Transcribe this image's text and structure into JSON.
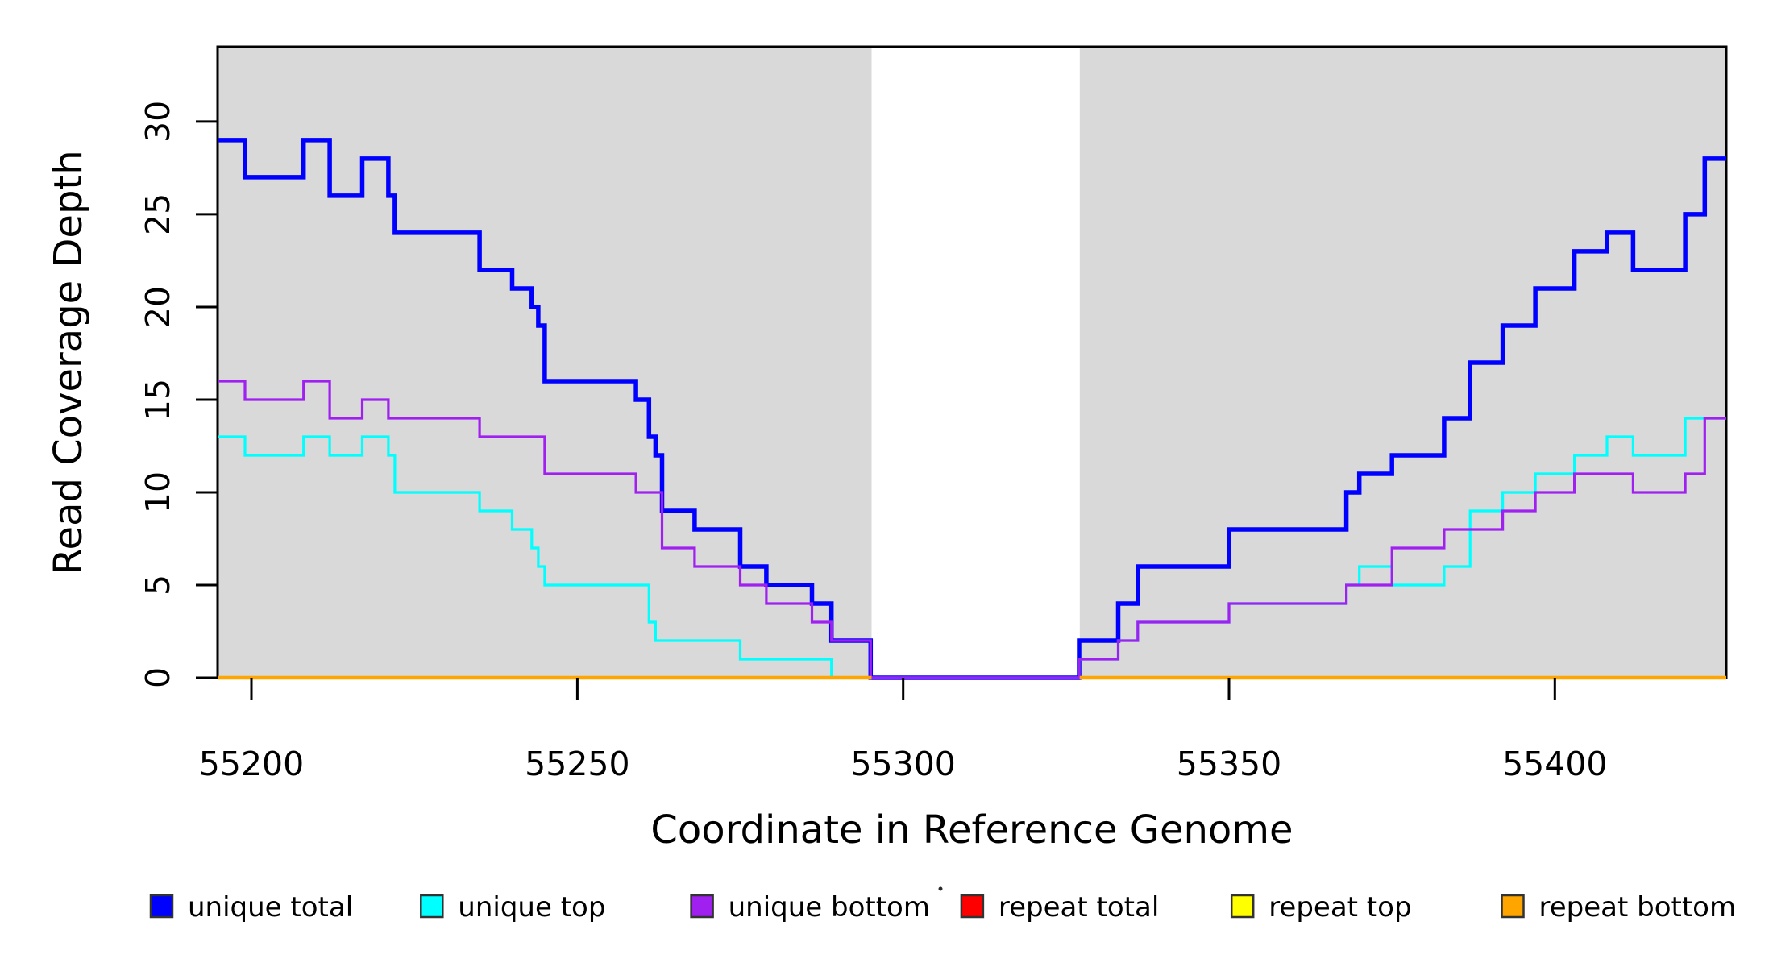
{
  "figure": {
    "background_color": "#ffffff",
    "plot_background_color": "#ffffff",
    "shaded_band_color": "#d9d9d9"
  },
  "axes": {
    "xlabel": "Coordinate in Reference Genome",
    "ylabel": "Read Coverage Depth"
  },
  "chart_data": {
    "type": "line",
    "step": true,
    "title": "",
    "xlabel": "Coordinate in Reference Genome",
    "ylabel": "Read Coverage Depth",
    "xlim": [
      55194.8,
      55426.3
    ],
    "ylim": [
      0,
      34.04
    ],
    "x_ticks": [
      55200,
      55250,
      55300,
      55350,
      55400
    ],
    "y_ticks": [
      0,
      5,
      10,
      15,
      20,
      25,
      30
    ],
    "grid": "off",
    "legend_position": "bottom",
    "shaded_regions": [
      {
        "from": 55194.8,
        "to": 55295.15,
        "color": "#d9d9d9"
      },
      {
        "from": 55327.1,
        "to": 55426.3,
        "color": "#d9d9d9"
      }
    ],
    "gap_region": {
      "from": 55295.15,
      "to": 55327.1,
      "note": "white unshaded gap where unique coverage drops to 0"
    },
    "series": [
      {
        "name": "unique total",
        "color": "#0000ff",
        "width": 5.5,
        "steps": [
          [
            55195,
            29
          ],
          [
            55199,
            27
          ],
          [
            55208,
            29
          ],
          [
            55212,
            26
          ],
          [
            55217,
            28
          ],
          [
            55221,
            26
          ],
          [
            55222,
            24
          ],
          [
            55235,
            22
          ],
          [
            55240,
            21
          ],
          [
            55243,
            20
          ],
          [
            55244,
            19
          ],
          [
            55245,
            16
          ],
          [
            55259,
            15
          ],
          [
            55261,
            13
          ],
          [
            55262,
            12
          ],
          [
            55263,
            9
          ],
          [
            55268,
            8
          ],
          [
            55275,
            6
          ],
          [
            55279,
            5
          ],
          [
            55286,
            4
          ],
          [
            55289,
            2
          ],
          [
            55295,
            0
          ],
          [
            55327,
            2
          ],
          [
            55333,
            4
          ],
          [
            55336,
            6
          ],
          [
            55350,
            8
          ],
          [
            55368,
            10
          ],
          [
            55370,
            11
          ],
          [
            55375,
            12
          ],
          [
            55383,
            14
          ],
          [
            55387,
            17
          ],
          [
            55392,
            19
          ],
          [
            55397,
            21
          ],
          [
            55403,
            23
          ],
          [
            55408,
            24
          ],
          [
            55412,
            22
          ],
          [
            55420,
            25
          ],
          [
            55423,
            28
          ]
        ]
      },
      {
        "name": "unique top",
        "color": "#00ffff",
        "width": 3.2,
        "steps": [
          [
            55195,
            13
          ],
          [
            55199,
            12
          ],
          [
            55208,
            13
          ],
          [
            55212,
            12
          ],
          [
            55217,
            13
          ],
          [
            55221,
            12
          ],
          [
            55222,
            10
          ],
          [
            55235,
            9
          ],
          [
            55240,
            8
          ],
          [
            55243,
            7
          ],
          [
            55244,
            6
          ],
          [
            55245,
            5
          ],
          [
            55261,
            3
          ],
          [
            55262,
            2
          ],
          [
            55275,
            1
          ],
          [
            55289,
            0
          ],
          [
            55327,
            1
          ],
          [
            55333,
            2
          ],
          [
            55336,
            3
          ],
          [
            55350,
            4
          ],
          [
            55368,
            5
          ],
          [
            55370,
            6
          ],
          [
            55375,
            5
          ],
          [
            55383,
            6
          ],
          [
            55387,
            9
          ],
          [
            55392,
            10
          ],
          [
            55397,
            11
          ],
          [
            55403,
            12
          ],
          [
            55408,
            13
          ],
          [
            55412,
            12
          ],
          [
            55420,
            14
          ]
        ]
      },
      {
        "name": "unique bottom",
        "color": "#a020f0",
        "width": 3.2,
        "steps": [
          [
            55195,
            16
          ],
          [
            55199,
            15
          ],
          [
            55208,
            16
          ],
          [
            55212,
            14
          ],
          [
            55217,
            15
          ],
          [
            55221,
            14
          ],
          [
            55235,
            13
          ],
          [
            55245,
            11
          ],
          [
            55259,
            10
          ],
          [
            55263,
            7
          ],
          [
            55268,
            6
          ],
          [
            55275,
            5
          ],
          [
            55279,
            4
          ],
          [
            55286,
            3
          ],
          [
            55289,
            2
          ],
          [
            55295,
            0
          ],
          [
            55327,
            1
          ],
          [
            55333,
            2
          ],
          [
            55336,
            3
          ],
          [
            55350,
            4
          ],
          [
            55368,
            5
          ],
          [
            55375,
            7
          ],
          [
            55383,
            8
          ],
          [
            55392,
            9
          ],
          [
            55397,
            10
          ],
          [
            55403,
            11
          ],
          [
            55412,
            10
          ],
          [
            55420,
            11
          ],
          [
            55423,
            14
          ]
        ]
      },
      {
        "name": "repeat total",
        "color": "#ff0000",
        "width": 3,
        "value": 0,
        "segments": [
          [
            55194.8,
            55295.15
          ],
          [
            55327.1,
            55426.3
          ]
        ]
      },
      {
        "name": "repeat top",
        "color": "#ffff00",
        "width": 3,
        "value": 0,
        "segments": [
          [
            55194.8,
            55295.15
          ],
          [
            55327.1,
            55426.3
          ]
        ]
      },
      {
        "name": "repeat bottom",
        "color": "#ffa500",
        "width": 4.5,
        "value": 0,
        "segments": [
          [
            55194.8,
            55295.15
          ],
          [
            55327.1,
            55426.3
          ]
        ]
      }
    ],
    "legend": {
      "items": [
        {
          "label": "unique total",
          "color": "#0000ff"
        },
        {
          "label": "unique top",
          "color": "#00ffff"
        },
        {
          "label": "unique bottom",
          "color": "#a020f0"
        },
        {
          "label": "repeat total",
          "color": "#ff0000"
        },
        {
          "label": "repeat top",
          "color": "#ffff00"
        },
        {
          "label": "repeat bottom",
          "color": "#ffa500"
        }
      ]
    },
    "stray_mark": {
      "x": 1167,
      "y": 1103
    }
  }
}
